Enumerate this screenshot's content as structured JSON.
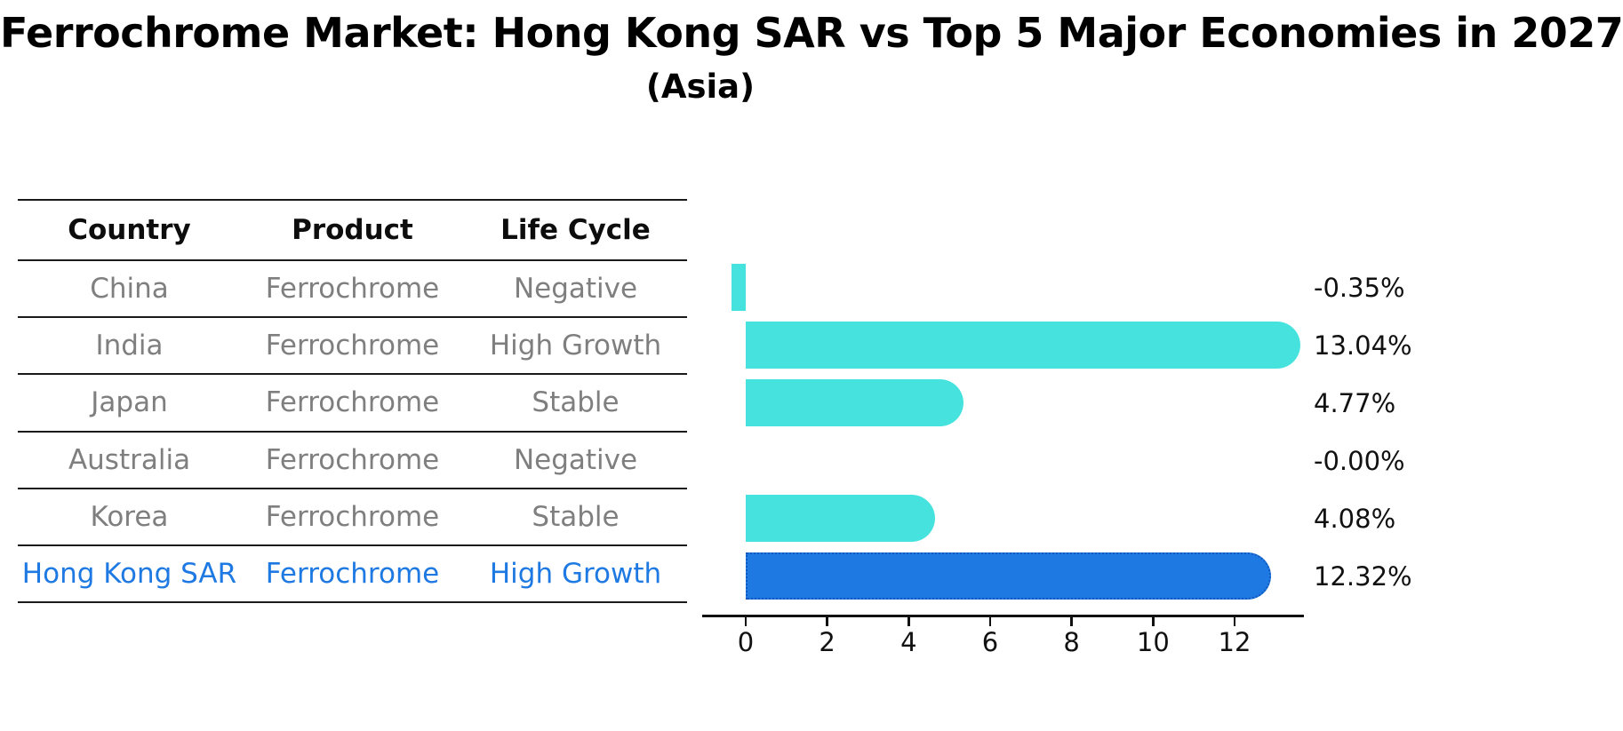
{
  "header": {
    "title": "Ferrochrome Market: Hong Kong SAR vs Top 5 Major Economies in 2027",
    "subtitle": "(Asia)"
  },
  "table": {
    "columns": [
      "Country",
      "Product",
      "Life Cycle"
    ],
    "rows": [
      {
        "country": "China",
        "product": "Ferrochrome",
        "life_cycle": "Negative"
      },
      {
        "country": "India",
        "product": "Ferrochrome",
        "life_cycle": "High Growth"
      },
      {
        "country": "Japan",
        "product": "Ferrochrome",
        "life_cycle": "Stable"
      },
      {
        "country": "Australia",
        "product": "Ferrochrome",
        "life_cycle": "Negative"
      },
      {
        "country": "Korea",
        "product": "Ferrochrome",
        "life_cycle": "Stable"
      },
      {
        "country": "Hong Kong SAR",
        "product": "Ferrochrome",
        "life_cycle": "High Growth"
      }
    ],
    "highlight_row": 5
  },
  "chart_data": {
    "type": "bar",
    "orientation": "horizontal",
    "title": "Ferrochrome Market: Hong Kong SAR vs Top 5 Major Economies in 2027",
    "subtitle": "(Asia)",
    "categories": [
      "China",
      "India",
      "Japan",
      "Australia",
      "Korea",
      "Hong Kong SAR"
    ],
    "values": [
      -0.35,
      13.04,
      4.77,
      -0.0,
      4.08,
      12.32
    ],
    "value_labels": [
      "-0.35%",
      "13.04%",
      "4.77%",
      "-0.00%",
      "4.08%",
      "12.32%"
    ],
    "xticks": [
      0,
      2,
      4,
      6,
      8,
      10,
      12
    ],
    "xlim": [
      -1.07,
      13.7
    ],
    "grid": false,
    "legend": false,
    "bar_color": "#46E3DE",
    "highlight_bar_color": "#1E7AE2",
    "highlight_border_color": "#1457BE",
    "highlight_text_color": "#1E7AE2",
    "highlight_index": 5
  }
}
